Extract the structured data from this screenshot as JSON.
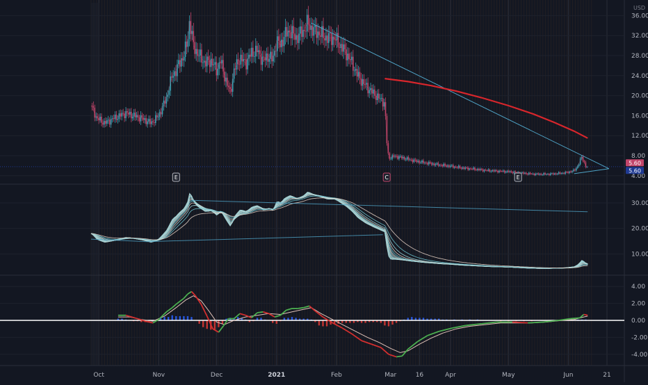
{
  "chart_data": {
    "type": "line",
    "currency": "USD",
    "x_ticks": [
      {
        "label": "Oct",
        "day": 0
      },
      {
        "label": "Nov",
        "day": 31
      },
      {
        "label": "Dec",
        "day": 61
      },
      {
        "label": "2021",
        "day": 92,
        "bold": true
      },
      {
        "label": "Feb",
        "day": 123
      },
      {
        "label": "Mar",
        "day": 151
      },
      {
        "label": "16",
        "day": 166
      },
      {
        "label": "Apr",
        "day": 182
      },
      {
        "label": "May",
        "day": 212
      },
      {
        "label": "Jun",
        "day": 243
      },
      {
        "label": "21",
        "day": 263
      }
    ],
    "x_domain_days": [
      -4,
      272
    ],
    "price_panel": {
      "ylim": [
        3,
        38
      ],
      "y_ticks": [
        4,
        8,
        12,
        16,
        20,
        24,
        28,
        32,
        36
      ],
      "y_tick_labels": [
        "4.00",
        "8.00",
        "12.00",
        "16.00",
        "20.00",
        "24.00",
        "28.00",
        "32.00",
        "36.00"
      ],
      "close_series": [
        [
          -4,
          18
        ],
        [
          -1,
          15.5
        ],
        [
          3,
          14.5
        ],
        [
          8,
          15.5
        ],
        [
          14,
          16.5
        ],
        [
          18,
          16
        ],
        [
          22,
          15.5
        ],
        [
          27,
          14.5
        ],
        [
          31,
          16
        ],
        [
          35,
          19.5
        ],
        [
          38,
          24
        ],
        [
          40,
          25
        ],
        [
          41,
          26
        ],
        [
          44,
          28
        ],
        [
          46,
          31
        ],
        [
          47,
          35
        ],
        [
          49,
          30
        ],
        [
          51,
          28.5
        ],
        [
          55,
          26.5
        ],
        [
          58,
          27
        ],
        [
          61,
          25
        ],
        [
          63,
          27
        ],
        [
          65,
          24
        ],
        [
          68,
          20.5
        ],
        [
          70,
          25
        ],
        [
          73,
          27.5
        ],
        [
          76,
          26.5
        ],
        [
          79,
          28.5
        ],
        [
          82,
          29
        ],
        [
          85,
          27
        ],
        [
          88,
          28
        ],
        [
          90,
          27
        ],
        [
          92,
          31
        ],
        [
          94,
          30
        ],
        [
          96,
          32
        ],
        [
          99,
          33
        ],
        [
          102,
          31.5
        ],
        [
          106,
          33
        ],
        [
          108,
          34.5
        ],
        [
          111,
          33
        ],
        [
          114,
          32.5
        ],
        [
          118,
          31.5
        ],
        [
          122,
          31.5
        ],
        [
          125,
          30
        ],
        [
          128,
          28.5
        ],
        [
          131,
          26.5
        ],
        [
          134,
          24
        ],
        [
          138,
          22
        ],
        [
          142,
          20.5
        ],
        [
          145,
          19.5
        ],
        [
          148,
          18.5
        ],
        [
          149,
          11
        ],
        [
          150,
          7.5
        ],
        [
          153,
          7.9
        ],
        [
          157,
          7.6
        ],
        [
          162,
          7.1
        ],
        [
          167,
          6.7
        ],
        [
          172,
          6.4
        ],
        [
          177,
          6.1
        ],
        [
          182,
          5.9
        ],
        [
          187,
          5.6
        ],
        [
          192,
          5.4
        ],
        [
          197,
          5.2
        ],
        [
          202,
          5.0
        ],
        [
          207,
          4.9
        ],
        [
          212,
          4.8
        ],
        [
          217,
          4.6
        ],
        [
          222,
          4.4
        ],
        [
          227,
          4.3
        ],
        [
          232,
          4.3
        ],
        [
          237,
          4.4
        ],
        [
          242,
          4.6
        ],
        [
          246,
          5.0
        ],
        [
          248,
          6.0
        ],
        [
          250,
          7.8
        ],
        [
          252,
          5.9
        ],
        [
          253,
          5.6
        ]
      ],
      "moving_average": [
        [
          148,
          23.4
        ],
        [
          160,
          22.8
        ],
        [
          172,
          22.0
        ],
        [
          185,
          20.9
        ],
        [
          198,
          19.6
        ],
        [
          212,
          18.0
        ],
        [
          225,
          16.3
        ],
        [
          236,
          14.6
        ],
        [
          246,
          12.9
        ],
        [
          253,
          11.5
        ]
      ],
      "trend_upper": [
        [
          110,
          34.5
        ],
        [
          264,
          5.4
        ]
      ],
      "trend_lower": [
        [
          246,
          4.4
        ],
        [
          264,
          5.4
        ]
      ],
      "horizontal_level": 5.8,
      "last_price_top": "5.60",
      "last_price_bottom": "5.60",
      "markers": [
        {
          "label": "E",
          "day": 40
        },
        {
          "label": "C",
          "day": 149
        },
        {
          "label": "E",
          "day": 217
        }
      ]
    },
    "ribbon_panel": {
      "ylim": [
        3,
        36
      ],
      "y_ticks": [
        10,
        20,
        30
      ],
      "y_tick_labels": [
        "10.00",
        "20.00",
        "30.00"
      ],
      "trend_lines": [
        [
          [
            -4,
            15.8
          ],
          [
            25,
            14.8
          ],
          [
            147,
            17.5
          ]
        ],
        [
          [
            48,
            31
          ],
          [
            253,
            26.5
          ]
        ]
      ]
    },
    "oscillator_panel": {
      "ylim": [
        -5,
        5
      ],
      "y_ticks": [
        -4,
        -2,
        0,
        2,
        4
      ],
      "y_tick_labels": [
        "-4.00",
        "-2.00",
        "0.00",
        "2.00",
        "4.00"
      ],
      "histogram_pos_color": "#2962ff",
      "histogram_neg_color": "#e53935",
      "signal_up_color": "#4caf50",
      "signal_down_color": "#d32f2f",
      "fast_line": [
        [
          10,
          0.6
        ],
        [
          14,
          0.6
        ],
        [
          17,
          0.4
        ],
        [
          20,
          0.2
        ],
        [
          24,
          -0.1
        ],
        [
          28,
          -0.3
        ],
        [
          31,
          0.1
        ],
        [
          35,
          1.0
        ],
        [
          38,
          1.5
        ],
        [
          40,
          1.9
        ],
        [
          44,
          2.6
        ],
        [
          46,
          3.1
        ],
        [
          48,
          3.4
        ],
        [
          50,
          2.9
        ],
        [
          53,
          1.9
        ],
        [
          56,
          0.5
        ],
        [
          59,
          -1.0
        ],
        [
          62,
          -1.4
        ],
        [
          65,
          -0.5
        ],
        [
          67,
          0.2
        ],
        [
          70,
          0.2
        ],
        [
          73,
          0.8
        ],
        [
          76,
          0.6
        ],
        [
          79,
          0.3
        ],
        [
          82,
          0.9
        ],
        [
          85,
          1.0
        ],
        [
          88,
          0.8
        ],
        [
          91,
          0.4
        ],
        [
          94,
          0.6
        ],
        [
          97,
          1.2
        ],
        [
          100,
          1.4
        ],
        [
          103,
          1.4
        ],
        [
          106,
          1.5
        ],
        [
          109,
          1.7
        ],
        [
          112,
          1.1
        ],
        [
          116,
          0.4
        ],
        [
          121,
          -0.3
        ],
        [
          126,
          -0.9
        ],
        [
          131,
          -1.6
        ],
        [
          136,
          -2.4
        ],
        [
          141,
          -2.8
        ],
        [
          146,
          -3.2
        ],
        [
          150,
          -4.0
        ],
        [
          154,
          -4.3
        ],
        [
          157,
          -4.2
        ],
        [
          160,
          -3.4
        ],
        [
          165,
          -2.5
        ],
        [
          170,
          -1.8
        ],
        [
          176,
          -1.3
        ],
        [
          183,
          -0.9
        ],
        [
          190,
          -0.6
        ],
        [
          198,
          -0.4
        ],
        [
          206,
          -0.2
        ],
        [
          214,
          -0.2
        ],
        [
          222,
          -0.3
        ],
        [
          230,
          -0.2
        ],
        [
          238,
          0.0
        ],
        [
          244,
          0.2
        ],
        [
          249,
          0.3
        ],
        [
          251,
          0.7
        ],
        [
          253,
          0.6
        ]
      ],
      "slow_line": [
        [
          10,
          0.4
        ],
        [
          16,
          0.4
        ],
        [
          22,
          0.1
        ],
        [
          28,
          -0.1
        ],
        [
          34,
          0.5
        ],
        [
          40,
          1.5
        ],
        [
          45,
          2.4
        ],
        [
          49,
          2.9
        ],
        [
          53,
          2.3
        ],
        [
          57,
          1.1
        ],
        [
          61,
          -0.2
        ],
        [
          65,
          -0.5
        ],
        [
          70,
          0.0
        ],
        [
          76,
          0.4
        ],
        [
          82,
          0.6
        ],
        [
          88,
          0.8
        ],
        [
          94,
          0.7
        ],
        [
          100,
          1.0
        ],
        [
          106,
          1.3
        ],
        [
          110,
          1.5
        ],
        [
          115,
          0.8
        ],
        [
          121,
          0.1
        ],
        [
          127,
          -0.6
        ],
        [
          133,
          -1.3
        ],
        [
          139,
          -2.0
        ],
        [
          145,
          -2.6
        ],
        [
          151,
          -3.3
        ],
        [
          156,
          -3.8
        ],
        [
          160,
          -3.6
        ],
        [
          166,
          -2.8
        ],
        [
          172,
          -2.1
        ],
        [
          178,
          -1.5
        ],
        [
          185,
          -1.0
        ],
        [
          192,
          -0.7
        ],
        [
          200,
          -0.5
        ],
        [
          208,
          -0.3
        ],
        [
          216,
          -0.3
        ],
        [
          224,
          -0.3
        ],
        [
          232,
          -0.2
        ],
        [
          240,
          0.0
        ],
        [
          246,
          0.1
        ],
        [
          251,
          0.4
        ],
        [
          253,
          0.5
        ]
      ],
      "histogram": [
        [
          10,
          0.2
        ],
        [
          12,
          0.2
        ],
        [
          14,
          0.1
        ],
        [
          16,
          0.0
        ],
        [
          18,
          -0.1
        ],
        [
          20,
          -0.1
        ],
        [
          22,
          -0.2
        ],
        [
          24,
          -0.2
        ],
        [
          26,
          -0.2
        ],
        [
          28,
          -0.1
        ],
        [
          30,
          0.1
        ],
        [
          32,
          0.3
        ],
        [
          34,
          0.4
        ],
        [
          36,
          0.4
        ],
        [
          38,
          0.6
        ],
        [
          40,
          0.5
        ],
        [
          42,
          0.5
        ],
        [
          44,
          0.5
        ],
        [
          46,
          0.5
        ],
        [
          48,
          0.4
        ],
        [
          50,
          0.0
        ],
        [
          52,
          -0.4
        ],
        [
          54,
          -0.8
        ],
        [
          56,
          -1.0
        ],
        [
          58,
          -1.1
        ],
        [
          60,
          -1.1
        ],
        [
          62,
          -0.8
        ],
        [
          64,
          -0.4
        ],
        [
          66,
          0.2
        ],
        [
          68,
          0.3
        ],
        [
          70,
          0.3
        ],
        [
          72,
          0.4
        ],
        [
          74,
          0.3
        ],
        [
          76,
          0.1
        ],
        [
          78,
          -0.2
        ],
        [
          80,
          -0.1
        ],
        [
          82,
          0.3
        ],
        [
          84,
          0.3
        ],
        [
          86,
          0.1
        ],
        [
          88,
          0.0
        ],
        [
          90,
          -0.3
        ],
        [
          92,
          -0.4
        ],
        [
          94,
          -0.1
        ],
        [
          96,
          0.3
        ],
        [
          98,
          0.3
        ],
        [
          100,
          0.4
        ],
        [
          102,
          0.3
        ],
        [
          104,
          0.2
        ],
        [
          106,
          0.2
        ],
        [
          108,
          0.2
        ],
        [
          110,
          0.1
        ],
        [
          112,
          -0.2
        ],
        [
          114,
          -0.6
        ],
        [
          116,
          -0.7
        ],
        [
          118,
          -0.7
        ],
        [
          120,
          -0.5
        ],
        [
          122,
          -0.4
        ],
        [
          124,
          -0.4
        ],
        [
          126,
          -0.3
        ],
        [
          128,
          -0.3
        ],
        [
          130,
          -0.3
        ],
        [
          132,
          -0.3
        ],
        [
          134,
          -0.2
        ],
        [
          136,
          -0.3
        ],
        [
          138,
          -0.3
        ],
        [
          140,
          -0.2
        ],
        [
          142,
          -0.2
        ],
        [
          144,
          -0.2
        ],
        [
          146,
          -0.3
        ],
        [
          148,
          -0.6
        ],
        [
          150,
          -0.7
        ],
        [
          152,
          -0.5
        ],
        [
          154,
          -0.3
        ],
        [
          156,
          -0.1
        ],
        [
          158,
          0.1
        ],
        [
          160,
          0.3
        ],
        [
          162,
          0.4
        ],
        [
          164,
          0.3
        ],
        [
          166,
          0.3
        ],
        [
          168,
          0.3
        ],
        [
          170,
          0.2
        ],
        [
          172,
          0.2
        ],
        [
          174,
          0.2
        ],
        [
          176,
          0.2
        ],
        [
          178,
          0.1
        ],
        [
          180,
          0.1
        ],
        [
          184,
          0.1
        ],
        [
          188,
          0.1
        ],
        [
          192,
          0.1
        ],
        [
          196,
          0.1
        ],
        [
          200,
          0.0
        ],
        [
          204,
          0.0
        ],
        [
          208,
          -0.1
        ],
        [
          212,
          -0.1
        ],
        [
          216,
          -0.1
        ],
        [
          220,
          -0.1
        ],
        [
          224,
          -0.1
        ],
        [
          228,
          0.0
        ],
        [
          232,
          0.0
        ],
        [
          236,
          0.0
        ],
        [
          240,
          0.0
        ],
        [
          244,
          0.1
        ],
        [
          248,
          0.1
        ],
        [
          250,
          0.1
        ],
        [
          252,
          0.1
        ]
      ]
    }
  }
}
